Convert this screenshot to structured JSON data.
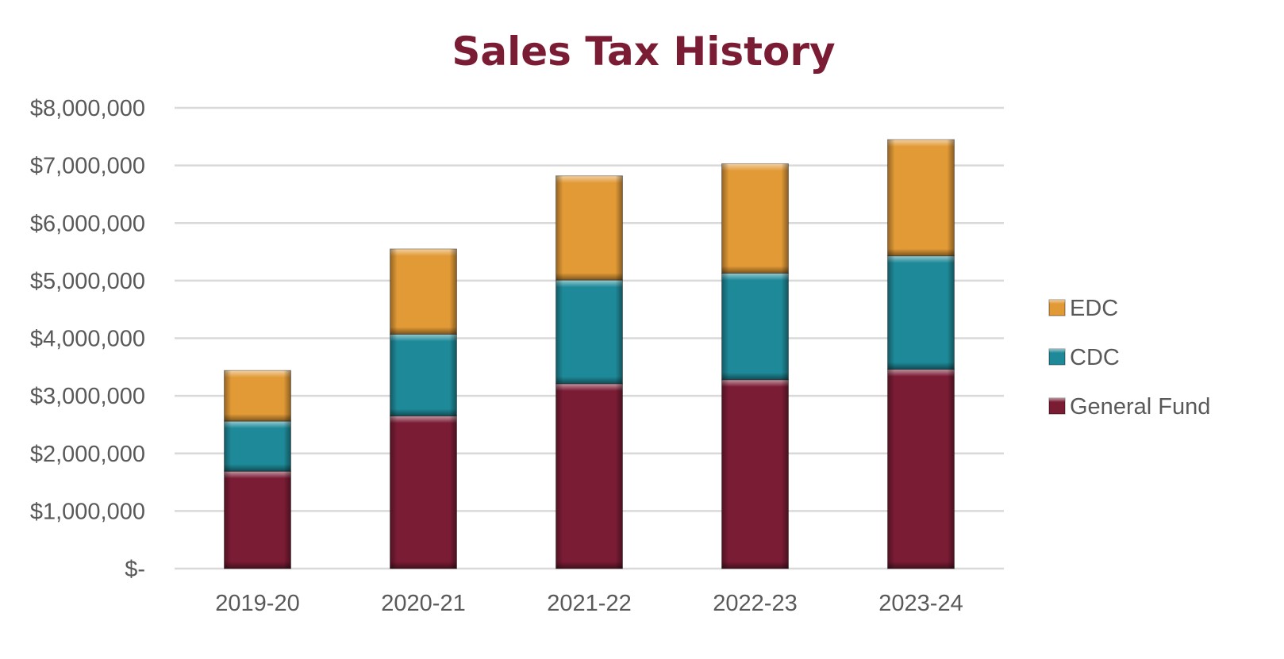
{
  "chart_data": {
    "type": "bar",
    "stacked": true,
    "title": "Sales Tax History",
    "xlabel": "",
    "ylabel": "",
    "categories": [
      "2019-20",
      "2020-21",
      "2021-22",
      "2022-23",
      "2023-24"
    ],
    "series": [
      {
        "name": "General Fund",
        "values": [
          1690000,
          2650000,
          3210000,
          3280000,
          3460000
        ],
        "color": "#7B1C35"
      },
      {
        "name": "CDC",
        "values": [
          870000,
          1420000,
          1800000,
          1850000,
          1970000
        ],
        "color": "#1E8A99"
      },
      {
        "name": "EDC",
        "values": [
          880000,
          1480000,
          1810000,
          1900000,
          2020000
        ],
        "color": "#E29A36"
      }
    ],
    "ylim": [
      0,
      8000000
    ],
    "yticks": [
      0,
      1000000,
      2000000,
      3000000,
      4000000,
      5000000,
      6000000,
      7000000,
      8000000
    ],
    "ytick_labels": [
      "$-",
      "$1,000,000",
      "$2,000,000",
      "$3,000,000",
      "$4,000,000",
      "$5,000,000",
      "$6,000,000",
      "$7,000,000",
      "$8,000,000"
    ],
    "legend": {
      "placement": "right",
      "order": [
        "EDC",
        "CDC",
        "General Fund"
      ]
    },
    "grid": true,
    "title_color": "#7B1C35",
    "grid_color": "#D9D9D9"
  }
}
